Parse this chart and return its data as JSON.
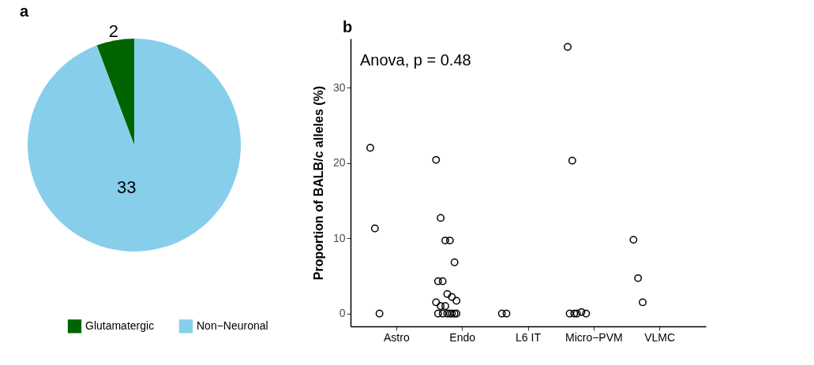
{
  "chart_data": [
    {
      "type": "pie",
      "title": "a",
      "categories": [
        "Glutamatergic",
        "Non−Neuronal"
      ],
      "values": [
        2,
        33
      ],
      "colors": [
        "#006400",
        "#87ceeb"
      ],
      "data_labels": true,
      "legend": "bottom"
    },
    {
      "type": "scatter",
      "title": "b",
      "ylabel": "Proportion of BALB/c alleles (%)",
      "categories": [
        "Astro",
        "Endo",
        "L6 IT",
        "Micro−PVM",
        "VLMC"
      ],
      "ylim": [
        -1.7,
        36.5
      ],
      "yticks": [
        0,
        10,
        20,
        30
      ],
      "marker": "circle",
      "annotations": [
        "Anova, p = 0.48"
      ],
      "series": [
        {
          "color": "#000000",
          "x": [
            "Astro",
            "Astro",
            "Astro",
            "Endo",
            "Endo",
            "Endo",
            "Endo",
            "Endo",
            "Endo",
            "Endo",
            "Endo",
            "Endo",
            "Endo",
            "Endo",
            "Endo",
            "Endo",
            "Endo",
            "Endo",
            "Endo",
            "Endo",
            "Endo",
            "Endo",
            "Endo",
            "L6 IT",
            "L6 IT",
            "Micro−PVM",
            "Micro−PVM",
            "Micro−PVM",
            "Micro−PVM",
            "Micro−PVM",
            "Micro−PVM",
            "Micro−PVM",
            "VLMC",
            "VLMC",
            "VLMC"
          ],
          "values": [
            22,
            11.3,
            0,
            20.4,
            12.7,
            9.7,
            9.7,
            6.8,
            4.3,
            4.3,
            2.6,
            2.2,
            1.7,
            1.5,
            1.0,
            1.0,
            0,
            0,
            0,
            0,
            0,
            0,
            0,
            0,
            0,
            35.4,
            20.3,
            0,
            0.2,
            0,
            0,
            0,
            9.8,
            4.7,
            1.5
          ]
        }
      ]
    }
  ]
}
